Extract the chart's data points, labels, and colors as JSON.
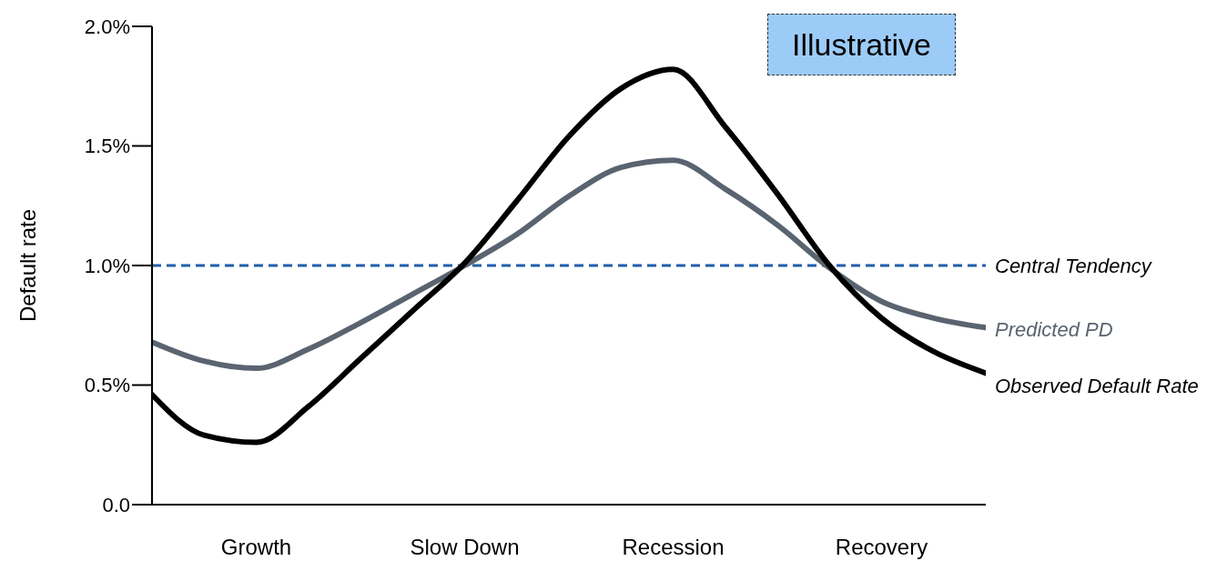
{
  "chart_data": {
    "type": "line",
    "ylabel": "Default rate",
    "categories": [
      null,
      null,
      "Growth",
      null,
      null,
      null,
      "Slow Down",
      null,
      null,
      null,
      "Recession",
      null,
      null,
      null,
      "Recovery",
      null,
      null
    ],
    "series": [
      {
        "name": "Predicted PD",
        "color": "#5a6470",
        "values": [
          0.68,
          0.6,
          0.57,
          0.65,
          0.76,
          0.88,
          1.0,
          1.13,
          1.29,
          1.41,
          1.44,
          1.32,
          1.17,
          0.99,
          0.85,
          0.78,
          0.74
        ]
      },
      {
        "name": "Observed Default Rate",
        "color": "#000000",
        "values": [
          0.46,
          0.29,
          0.26,
          0.41,
          0.61,
          0.81,
          1.01,
          1.27,
          1.54,
          1.74,
          1.82,
          1.58,
          1.3,
          1.0,
          0.78,
          0.64,
          0.55
        ]
      }
    ],
    "ylim": [
      0,
      2
    ],
    "yticks": [
      {
        "value": 0,
        "label": "0.0"
      },
      {
        "value": 0.5,
        "label": "0.5%"
      },
      {
        "value": 1,
        "label": "1.0%"
      },
      {
        "value": 1.5,
        "label": "1.5%"
      },
      {
        "value": 2,
        "label": "2.0%"
      }
    ],
    "ref_lines": [
      {
        "axis": "y",
        "value": 1,
        "label": "Central Tendency",
        "color": "#1f5fa8",
        "line_style": "dashed"
      }
    ],
    "annotations": [
      "Illustrative"
    ],
    "grid": false,
    "legend": false,
    "marker": "none",
    "line_style": "solid"
  }
}
